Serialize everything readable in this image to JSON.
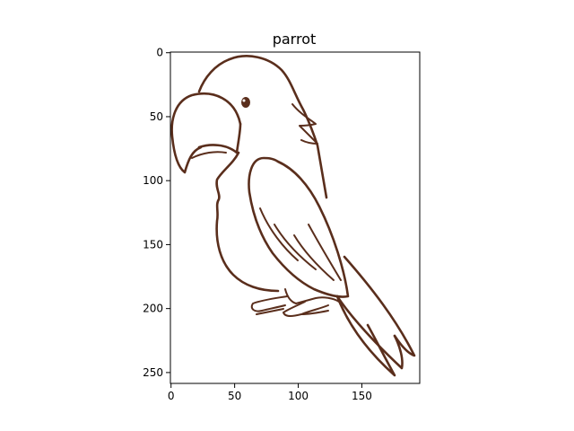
{
  "figure": {
    "title": "parrot",
    "image_subject": "parrot line drawing",
    "stroke_color": "#5a2e1c",
    "x_axis": {
      "ticks": [
        0,
        50,
        100,
        150
      ],
      "limits": [
        -0.5,
        195.5
      ]
    },
    "y_axis": {
      "ticks": [
        0,
        50,
        100,
        150,
        200,
        250
      ],
      "limits": [
        258.5,
        -0.5
      ],
      "inverted": true
    }
  }
}
